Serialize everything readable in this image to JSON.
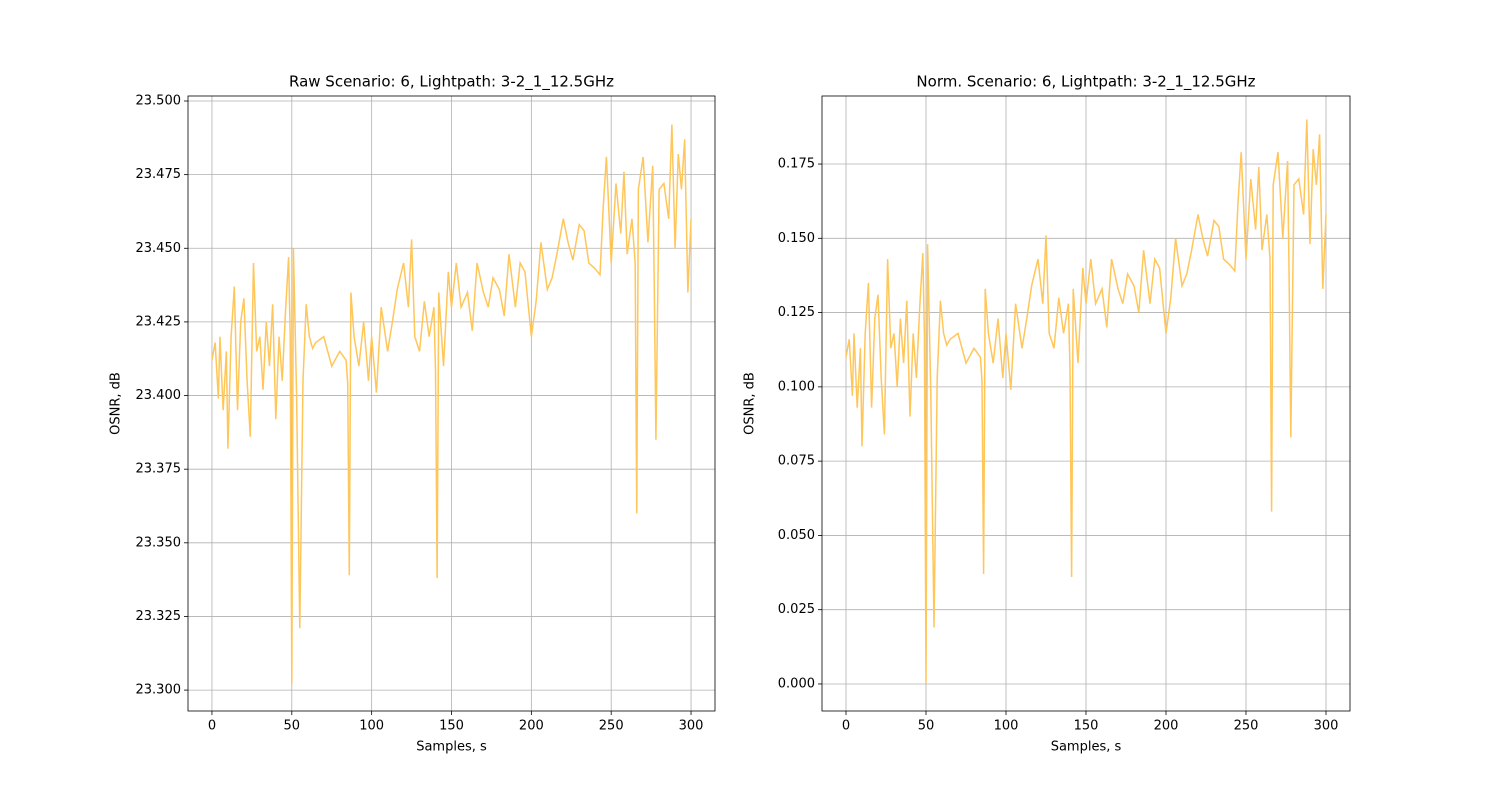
{
  "chart_data": [
    {
      "type": "line",
      "title": "Raw Scenario: 6, Lightpath: 3-2_1_12.5GHz",
      "xlabel": "Samples, s",
      "ylabel": "OSNR, dB",
      "grid": true,
      "color": "#ffc65a",
      "xlim": [
        -15,
        315
      ],
      "xticks": [
        0,
        50,
        100,
        150,
        200,
        250,
        300
      ],
      "ylim": [
        23.2929,
        23.5017
      ],
      "yticks": [
        {
          "value": 23.3,
          "label": "23.300"
        },
        {
          "value": 23.325,
          "label": "23.325"
        },
        {
          "value": 23.35,
          "label": "23.350"
        },
        {
          "value": 23.375,
          "label": "23.375"
        },
        {
          "value": 23.4,
          "label": "23.400"
        },
        {
          "value": 23.425,
          "label": "23.425"
        },
        {
          "value": 23.45,
          "label": "23.450"
        },
        {
          "value": 23.475,
          "label": "23.475"
        },
        {
          "value": 23.5,
          "label": "23.500"
        }
      ],
      "x": [
        0,
        2,
        4,
        5,
        7,
        9,
        10,
        12,
        14,
        16,
        18,
        20,
        22,
        24,
        26,
        28,
        30,
        32,
        34,
        36,
        38,
        40,
        42,
        44,
        46,
        48,
        49,
        50,
        51,
        53,
        55,
        57,
        59,
        61,
        63,
        65,
        70,
        75,
        80,
        84,
        85,
        86,
        87,
        89,
        92,
        95,
        98,
        100,
        103,
        106,
        110,
        113,
        116,
        120,
        123,
        125,
        127,
        130,
        133,
        136,
        139,
        140,
        141,
        142,
        145,
        148,
        150,
        153,
        156,
        160,
        163,
        166,
        170,
        173,
        176,
        180,
        183,
        186,
        190,
        193,
        196,
        200,
        203,
        206,
        210,
        213,
        216,
        220,
        223,
        226,
        230,
        233,
        236,
        240,
        243,
        245,
        247,
        250,
        253,
        256,
        258,
        260,
        263,
        265,
        266,
        267,
        270,
        273,
        276,
        277,
        278,
        280,
        283,
        286,
        288,
        290,
        292,
        294,
        296,
        298,
        300
      ],
      "values": [
        23.412,
        23.418,
        23.399,
        23.42,
        23.395,
        23.415,
        23.382,
        23.42,
        23.437,
        23.395,
        23.425,
        23.433,
        23.405,
        23.386,
        23.445,
        23.415,
        23.42,
        23.402,
        23.425,
        23.41,
        23.431,
        23.392,
        23.42,
        23.405,
        23.428,
        23.447,
        23.42,
        23.302,
        23.45,
        23.4,
        23.321,
        23.405,
        23.431,
        23.42,
        23.416,
        23.418,
        23.42,
        23.41,
        23.415,
        23.412,
        23.404,
        23.339,
        23.435,
        23.42,
        23.41,
        23.425,
        23.405,
        23.42,
        23.401,
        23.43,
        23.415,
        23.425,
        23.436,
        23.445,
        23.43,
        23.453,
        23.42,
        23.415,
        23.432,
        23.42,
        23.43,
        23.408,
        23.338,
        23.435,
        23.41,
        23.442,
        23.43,
        23.445,
        23.43,
        23.435,
        23.422,
        23.445,
        23.435,
        23.43,
        23.44,
        23.436,
        23.427,
        23.448,
        23.43,
        23.445,
        23.442,
        23.42,
        23.432,
        23.452,
        23.436,
        23.44,
        23.448,
        23.46,
        23.452,
        23.446,
        23.458,
        23.456,
        23.445,
        23.443,
        23.441,
        23.464,
        23.481,
        23.445,
        23.472,
        23.455,
        23.476,
        23.448,
        23.46,
        23.445,
        23.36,
        23.47,
        23.481,
        23.452,
        23.478,
        23.436,
        23.385,
        23.47,
        23.472,
        23.46,
        23.492,
        23.45,
        23.482,
        23.47,
        23.487,
        23.435,
        23.46
      ]
    },
    {
      "type": "line",
      "title": "Norm. Scenario: 6, Lightpath: 3-2_1_12.5GHz",
      "xlabel": "Samples, s",
      "ylabel": "OSNR, dB",
      "grid": true,
      "color": "#ffc65a",
      "xlim": [
        -15,
        315
      ],
      "xticks": [
        0,
        50,
        100,
        150,
        200,
        250,
        300
      ],
      "ylim": [
        -0.0091,
        0.1979
      ],
      "yticks": [
        {
          "value": 0,
          "label": "0.000"
        },
        {
          "value": 0.025,
          "label": "0.025"
        },
        {
          "value": 0.05,
          "label": "0.050"
        },
        {
          "value": 0.075,
          "label": "0.075"
        },
        {
          "value": 0.1,
          "label": "0.100"
        },
        {
          "value": 0.125,
          "label": "0.125"
        },
        {
          "value": 0.15,
          "label": "0.150"
        },
        {
          "value": 0.175,
          "label": "0.175"
        }
      ],
      "x": [
        0,
        2,
        4,
        5,
        7,
        9,
        10,
        12,
        14,
        16,
        18,
        20,
        22,
        24,
        26,
        28,
        30,
        32,
        34,
        36,
        38,
        40,
        42,
        44,
        46,
        48,
        49,
        50,
        51,
        53,
        55,
        57,
        59,
        61,
        63,
        65,
        70,
        75,
        80,
        84,
        85,
        86,
        87,
        89,
        92,
        95,
        98,
        100,
        103,
        106,
        110,
        113,
        116,
        120,
        123,
        125,
        127,
        130,
        133,
        136,
        139,
        140,
        141,
        142,
        145,
        148,
        150,
        153,
        156,
        160,
        163,
        166,
        170,
        173,
        176,
        180,
        183,
        186,
        190,
        193,
        196,
        200,
        203,
        206,
        210,
        213,
        216,
        220,
        223,
        226,
        230,
        233,
        236,
        240,
        243,
        245,
        247,
        250,
        253,
        256,
        258,
        260,
        263,
        265,
        266,
        267,
        270,
        273,
        276,
        277,
        278,
        280,
        283,
        286,
        288,
        290,
        292,
        294,
        296,
        298,
        300
      ],
      "values": [
        0.11,
        0.116,
        0.097,
        0.118,
        0.093,
        0.113,
        0.08,
        0.118,
        0.135,
        0.093,
        0.123,
        0.131,
        0.103,
        0.084,
        0.143,
        0.113,
        0.118,
        0.1,
        0.123,
        0.108,
        0.129,
        0.09,
        0.118,
        0.103,
        0.126,
        0.145,
        0.118,
        0.0,
        0.148,
        0.098,
        0.019,
        0.103,
        0.129,
        0.118,
        0.114,
        0.116,
        0.118,
        0.108,
        0.113,
        0.11,
        0.102,
        0.037,
        0.133,
        0.118,
        0.108,
        0.123,
        0.103,
        0.118,
        0.099,
        0.128,
        0.113,
        0.123,
        0.134,
        0.143,
        0.128,
        0.151,
        0.118,
        0.113,
        0.13,
        0.118,
        0.128,
        0.106,
        0.036,
        0.133,
        0.108,
        0.14,
        0.128,
        0.143,
        0.128,
        0.133,
        0.12,
        0.143,
        0.133,
        0.128,
        0.138,
        0.134,
        0.125,
        0.146,
        0.128,
        0.143,
        0.14,
        0.118,
        0.13,
        0.15,
        0.134,
        0.138,
        0.146,
        0.158,
        0.15,
        0.144,
        0.156,
        0.154,
        0.143,
        0.141,
        0.139,
        0.162,
        0.179,
        0.143,
        0.17,
        0.153,
        0.174,
        0.146,
        0.158,
        0.143,
        0.058,
        0.168,
        0.179,
        0.15,
        0.176,
        0.134,
        0.083,
        0.168,
        0.17,
        0.158,
        0.19,
        0.148,
        0.18,
        0.168,
        0.185,
        0.133,
        0.158
      ]
    }
  ]
}
